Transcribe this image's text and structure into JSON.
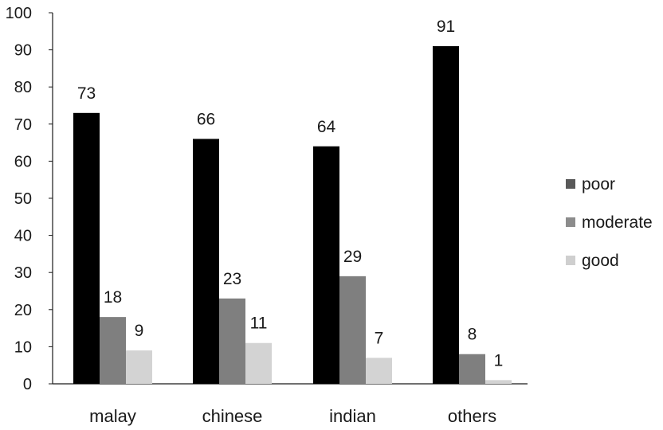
{
  "chart_data": {
    "type": "bar",
    "categories": [
      "malay",
      "chinese",
      "indian",
      "others"
    ],
    "series": [
      {
        "name": "poor",
        "values": [
          73,
          66,
          64,
          91
        ],
        "color": "#000000"
      },
      {
        "name": "moderate",
        "values": [
          18,
          23,
          29,
          8
        ],
        "color": "#7f7f7f"
      },
      {
        "name": "good",
        "values": [
          9,
          11,
          7,
          1
        ],
        "color": "#d3d3d3"
      }
    ],
    "ylim": [
      0,
      100
    ],
    "yticks": [
      0,
      10,
      20,
      30,
      40,
      50,
      60,
      70,
      80,
      90,
      100
    ],
    "legend_placement": "right",
    "legend_colors": [
      "#595959",
      "#8c8c8c",
      "#cfcfcf"
    ],
    "grid": false,
    "data_labels": true
  }
}
